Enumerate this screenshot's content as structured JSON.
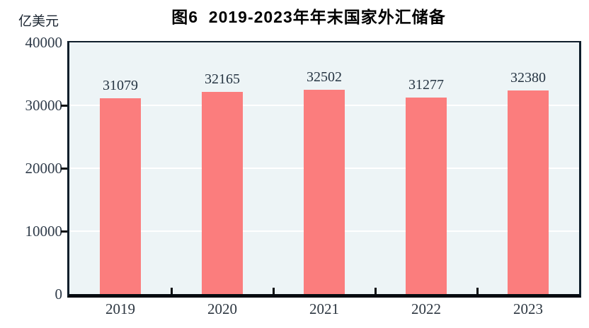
{
  "figure": {
    "title": "图6  2019-2023年年末国家外汇储备",
    "y_axis_unit": "亿美元"
  },
  "chart_data": {
    "type": "bar",
    "title": "图6  2019-2023年年末国家外汇储备",
    "ylabel": "亿美元",
    "xlabel": "",
    "categories": [
      "2019",
      "2020",
      "2021",
      "2022",
      "2023"
    ],
    "values": [
      31079,
      32165,
      32502,
      31277,
      32380
    ],
    "ylim": [
      0,
      40000
    ],
    "yticks": [
      0,
      10000,
      20000,
      30000,
      40000
    ],
    "grid": true,
    "gridlines_at": [
      10000,
      20000,
      30000
    ],
    "legend_position": "none",
    "data_labels_shown": true,
    "colors": {
      "bar": "#fb7d7d",
      "plot_background": "#edf4f6",
      "gridline": "#ffffff",
      "axis_frame": "#0f1e2b",
      "value_text": "#253442",
      "tick_text": "#2f3b49",
      "title_text": "#000000"
    }
  }
}
